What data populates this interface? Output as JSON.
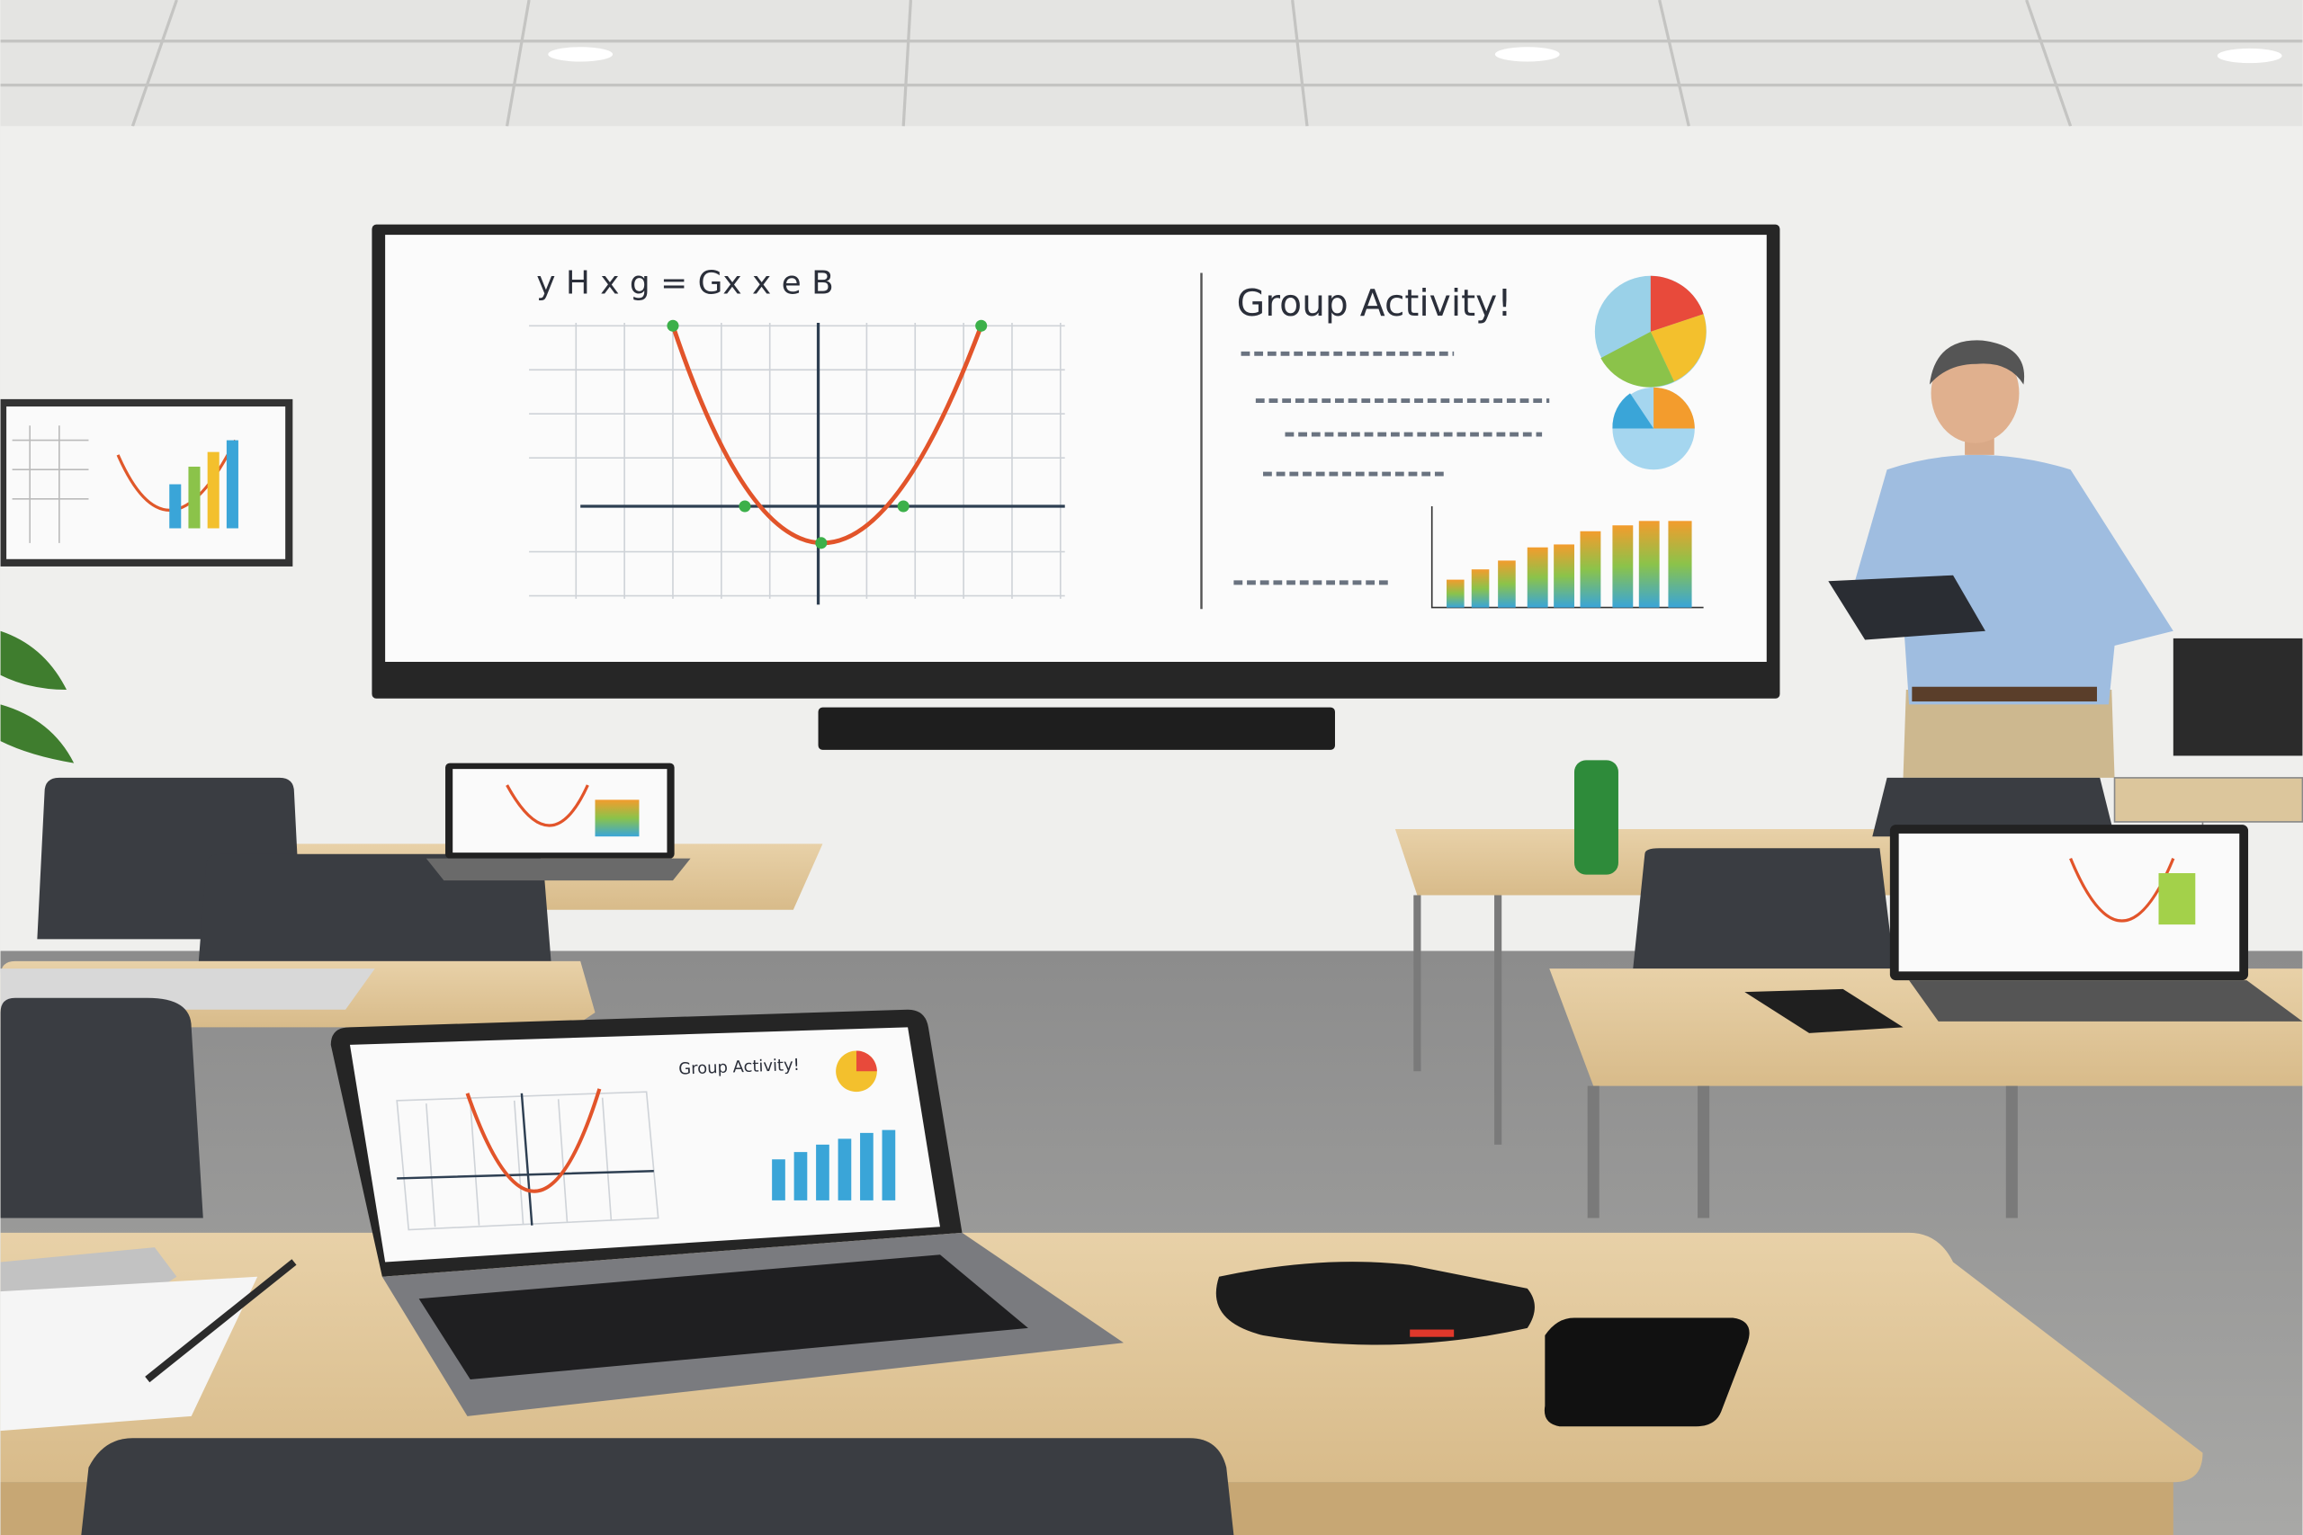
{
  "screen": {
    "equation": "y  H  x  g = Gx  x  e  B",
    "heading": "Group Activity!"
  },
  "laptop": {
    "heading": "Group Activity!"
  }
}
